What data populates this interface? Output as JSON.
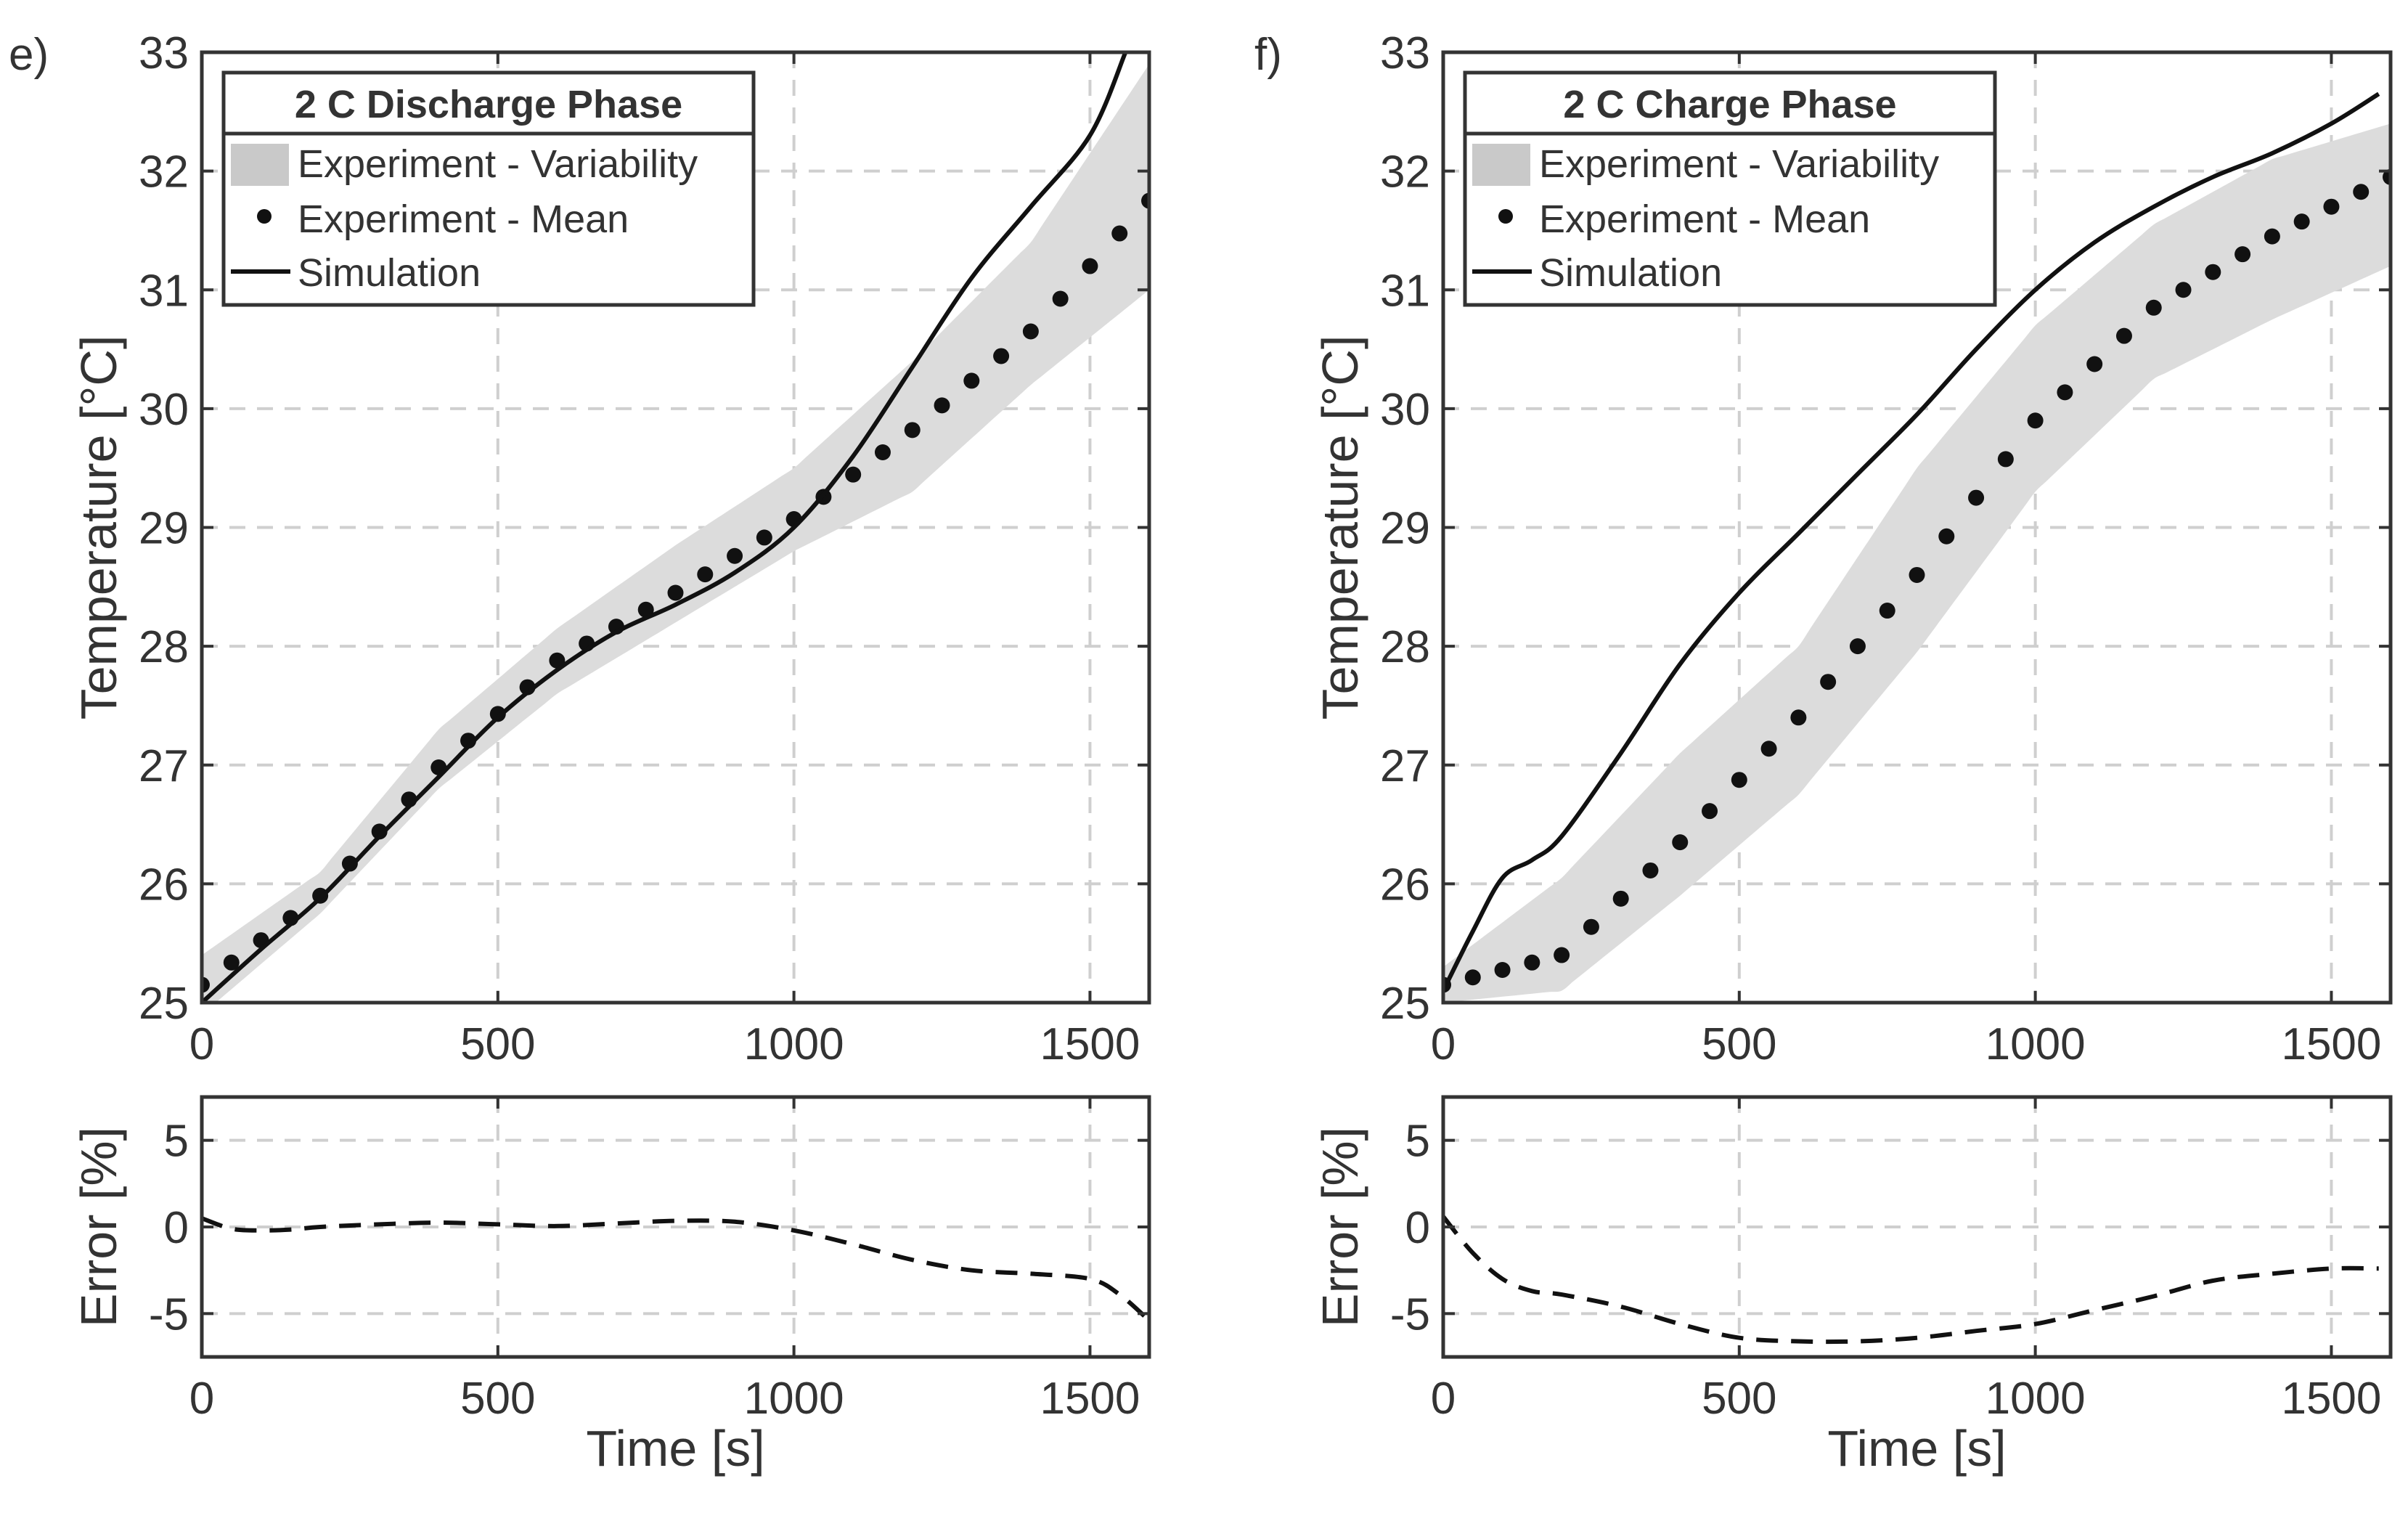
{
  "figure": {
    "panel_labels": [
      "e)",
      "f)"
    ]
  },
  "chart_data": [
    {
      "type": "line",
      "panel": "e)",
      "title": "2 C Discharge Phase",
      "legend_entries": [
        "Experiment - Variability",
        "Experiment - Mean",
        "Simulation"
      ],
      "legend_placement": "top-left",
      "xlabel": "Time [s]",
      "ylabel": "Temperature [°C]",
      "xlim": [
        0,
        1600
      ],
      "ylim": [
        25,
        33
      ],
      "xticks": [
        0,
        500,
        1000,
        1500
      ],
      "yticks": [
        25,
        26,
        27,
        28,
        29,
        30,
        31,
        32,
        33
      ],
      "grid": true,
      "series": [
        {
          "name": "Experiment - Variability",
          "style": "band",
          "color": "#dcdcdc",
          "x": [
            0,
            200,
            400,
            600,
            800,
            1000,
            1200,
            1400,
            1600
          ],
          "lower": [
            24.9,
            25.75,
            26.8,
            27.6,
            28.2,
            28.8,
            29.3,
            30.2,
            31.0
          ],
          "upper": [
            25.4,
            26.1,
            27.3,
            28.15,
            28.85,
            29.5,
            30.4,
            31.4,
            32.9
          ]
        },
        {
          "name": "Experiment - Mean",
          "style": "dots",
          "color": "#111111",
          "x": [
            0,
            200,
            400,
            600,
            800,
            1000,
            1200,
            1400,
            1600
          ],
          "y": [
            25.15,
            25.9,
            26.98,
            27.88,
            28.45,
            29.07,
            29.82,
            30.65,
            31.75
          ]
        },
        {
          "name": "Simulation",
          "style": "solid",
          "color": "#111111",
          "x": [
            0,
            100,
            200,
            300,
            400,
            500,
            600,
            700,
            800,
            900,
            1000,
            1100,
            1200,
            1300,
            1400,
            1500,
            1560
          ],
          "y": [
            25.0,
            25.45,
            25.88,
            26.4,
            26.9,
            27.4,
            27.8,
            28.12,
            28.35,
            28.62,
            29.0,
            29.6,
            30.35,
            31.1,
            31.7,
            32.3,
            33.0
          ]
        }
      ]
    },
    {
      "type": "line",
      "panel": "e)",
      "xlabel": "Time [s]",
      "ylabel": "Error [%]",
      "xlim": [
        0,
        1600
      ],
      "ylim": [
        -7.5,
        7.5
      ],
      "xticks": [
        0,
        500,
        1000,
        1500
      ],
      "yticks": [
        -5,
        0,
        5
      ],
      "grid": true,
      "series": [
        {
          "name": "Error",
          "style": "dashed",
          "color": "#111111",
          "x": [
            0,
            50,
            100,
            150,
            200,
            300,
            400,
            500,
            600,
            700,
            800,
            900,
            1000,
            1100,
            1200,
            1300,
            1400,
            1500,
            1550,
            1600
          ],
          "y": [
            0.5,
            -0.1,
            -0.2,
            -0.15,
            0.0,
            0.15,
            0.25,
            0.15,
            0.05,
            0.2,
            0.35,
            0.3,
            -0.2,
            -1.0,
            -1.9,
            -2.5,
            -2.7,
            -3.0,
            -3.9,
            -5.4
          ]
        }
      ]
    },
    {
      "type": "line",
      "panel": "f)",
      "title": "2 C Charge Phase",
      "legend_entries": [
        "Experiment - Variability",
        "Experiment - Mean",
        "Simulation"
      ],
      "legend_placement": "top-left",
      "xlabel": "Time [s]",
      "ylabel": "Temperature [°C]",
      "xlim": [
        0,
        1600
      ],
      "ylim": [
        25,
        33
      ],
      "xticks": [
        0,
        500,
        1000,
        1500
      ],
      "yticks": [
        25,
        26,
        27,
        28,
        29,
        30,
        31,
        32,
        33
      ],
      "grid": true,
      "series": [
        {
          "name": "Experiment - Variability",
          "style": "band",
          "color": "#dcdcdc",
          "x": [
            0,
            200,
            400,
            600,
            800,
            1000,
            1200,
            1400,
            1600
          ],
          "lower": [
            25.0,
            25.1,
            25.9,
            26.75,
            27.95,
            29.3,
            30.25,
            30.75,
            31.2
          ],
          "upper": [
            25.3,
            26.05,
            27.1,
            28.0,
            29.5,
            30.7,
            31.55,
            32.1,
            32.4
          ]
        },
        {
          "name": "Experiment - Mean",
          "style": "dots",
          "color": "#111111",
          "x": [
            0,
            200,
            400,
            600,
            800,
            1000,
            1200,
            1400,
            1600
          ],
          "y": [
            25.15,
            25.4,
            26.35,
            27.4,
            28.6,
            29.9,
            30.85,
            31.45,
            31.95
          ]
        },
        {
          "name": "Simulation",
          "style": "solid",
          "color": "#111111",
          "x": [
            0,
            50,
            100,
            150,
            200,
            300,
            400,
            500,
            600,
            700,
            800,
            900,
            1000,
            1100,
            1200,
            1300,
            1400,
            1500,
            1580
          ],
          "y": [
            25.1,
            25.6,
            26.05,
            26.2,
            26.4,
            27.1,
            27.85,
            28.45,
            28.95,
            29.45,
            29.95,
            30.5,
            31.0,
            31.4,
            31.7,
            31.95,
            32.15,
            32.4,
            32.65
          ]
        }
      ]
    },
    {
      "type": "line",
      "panel": "f)",
      "xlabel": "Time [s]",
      "ylabel": "Error [%]",
      "xlim": [
        0,
        1600
      ],
      "ylim": [
        -7.5,
        7.5
      ],
      "xticks": [
        0,
        500,
        1000,
        1500
      ],
      "yticks": [
        -5,
        0,
        5
      ],
      "grid": true,
      "series": [
        {
          "name": "Error",
          "style": "dashed",
          "color": "#111111",
          "x": [
            0,
            50,
            100,
            150,
            200,
            300,
            400,
            500,
            600,
            700,
            800,
            900,
            1000,
            1100,
            1200,
            1300,
            1400,
            1500,
            1580
          ],
          "y": [
            0.6,
            -1.5,
            -3.0,
            -3.7,
            -3.9,
            -4.6,
            -5.6,
            -6.4,
            -6.6,
            -6.6,
            -6.4,
            -6.0,
            -5.6,
            -4.8,
            -4.0,
            -3.1,
            -2.7,
            -2.4,
            -2.4
          ]
        }
      ]
    }
  ]
}
